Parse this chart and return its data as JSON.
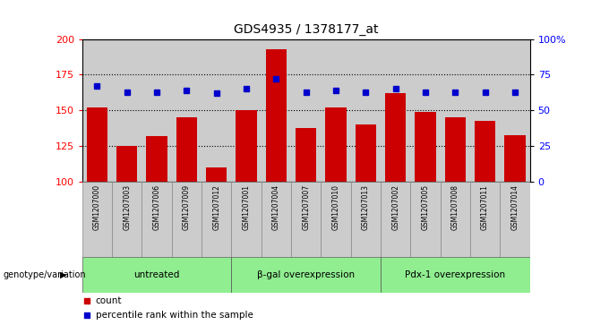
{
  "title": "GDS4935 / 1378177_at",
  "samples": [
    "GSM1207000",
    "GSM1207003",
    "GSM1207006",
    "GSM1207009",
    "GSM1207012",
    "GSM1207001",
    "GSM1207004",
    "GSM1207007",
    "GSM1207010",
    "GSM1207013",
    "GSM1207002",
    "GSM1207005",
    "GSM1207008",
    "GSM1207011",
    "GSM1207014"
  ],
  "counts": [
    152,
    125,
    132,
    145,
    110,
    150,
    193,
    138,
    152,
    140,
    162,
    149,
    145,
    143,
    133
  ],
  "percentiles": [
    67,
    63,
    63,
    64,
    62,
    65,
    72,
    63,
    64,
    63,
    65,
    63,
    63,
    63,
    63
  ],
  "groups": [
    {
      "label": "untreated",
      "start": 0,
      "end": 4
    },
    {
      "label": "β-gal overexpression",
      "start": 5,
      "end": 9
    },
    {
      "label": "Pdx-1 overexpression",
      "start": 10,
      "end": 14
    }
  ],
  "bar_color": "#cc0000",
  "dot_color": "#0000cc",
  "ylim_left": [
    100,
    200
  ],
  "ylim_right": [
    0,
    100
  ],
  "yticks_left": [
    100,
    125,
    150,
    175,
    200
  ],
  "yticks_right": [
    0,
    25,
    50,
    75,
    100
  ],
  "yticklabels_right": [
    "0",
    "25",
    "50",
    "75",
    "100%"
  ],
  "group_bg_color": "#90EE90",
  "bar_bg_color": "#cccccc",
  "legend_count_label": "count",
  "legend_pct_label": "percentile rank within the sample",
  "xlabel_left": "genotype/variation"
}
